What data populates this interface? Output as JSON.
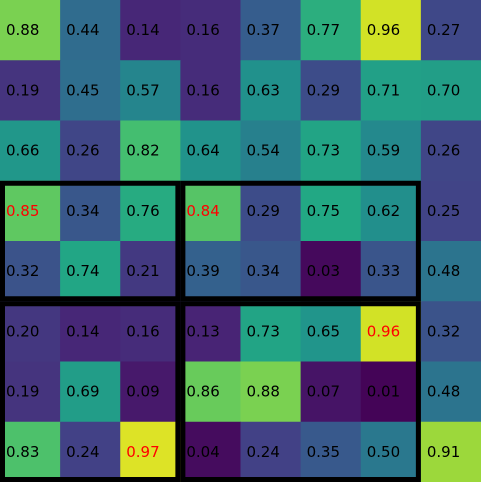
{
  "chart_data": {
    "type": "heatmap",
    "rows": 8,
    "cols": 8,
    "values": [
      [
        0.88,
        0.44,
        0.14,
        0.16,
        0.37,
        0.77,
        0.96,
        0.27
      ],
      [
        0.19,
        0.45,
        0.57,
        0.16,
        0.63,
        0.29,
        0.71,
        0.7
      ],
      [
        0.66,
        0.26,
        0.82,
        0.64,
        0.54,
        0.73,
        0.59,
        0.26
      ],
      [
        0.85,
        0.34,
        0.76,
        0.84,
        0.29,
        0.75,
        0.62,
        0.25
      ],
      [
        0.32,
        0.74,
        0.21,
        0.39,
        0.34,
        0.03,
        0.33,
        0.48
      ],
      [
        0.2,
        0.14,
        0.16,
        0.13,
        0.73,
        0.65,
        0.96,
        0.32
      ],
      [
        0.19,
        0.69,
        0.09,
        0.86,
        0.88,
        0.07,
        0.01,
        0.48
      ],
      [
        0.83,
        0.24,
        0.97,
        0.04,
        0.24,
        0.35,
        0.5,
        0.91
      ]
    ],
    "labels": [
      [
        "0.88",
        "0.44",
        "0.14",
        "0.16",
        "0.37",
        "0.77",
        "0.96",
        "0.27"
      ],
      [
        "0.19",
        "0.45",
        "0.57",
        "0.16",
        "0.63",
        "0.29",
        "0.71",
        "0.70"
      ],
      [
        "0.66",
        "0.26",
        "0.82",
        "0.64",
        "0.54",
        "0.73",
        "0.59",
        "0.26"
      ],
      [
        "0.85",
        "0.34",
        "0.76",
        "0.84",
        "0.29",
        "0.75",
        "0.62",
        "0.25"
      ],
      [
        "0.32",
        "0.74",
        "0.21",
        "0.39",
        "0.34",
        "0.03",
        "0.33",
        "0.48"
      ],
      [
        "0.20",
        "0.14",
        "0.16",
        "0.13",
        "0.73",
        "0.65",
        "0.96",
        "0.32"
      ],
      [
        "0.19",
        "0.69",
        "0.09",
        "0.86",
        "0.88",
        "0.07",
        "0.01",
        "0.48"
      ],
      [
        "0.83",
        "0.24",
        "0.97",
        "0.04",
        "0.24",
        "0.35",
        "0.50",
        "0.91"
      ]
    ],
    "colormap": "viridis",
    "value_range": [
      0,
      1
    ],
    "highlighted_cells": [
      [
        3,
        0
      ],
      [
        3,
        3
      ],
      [
        5,
        6
      ],
      [
        7,
        2
      ]
    ],
    "highlight_color": "#ff0000",
    "label_color": "#000000",
    "regions": [
      {
        "row_start": 3,
        "row_end": 4,
        "col_start": 0,
        "col_end": 2
      },
      {
        "row_start": 3,
        "row_end": 4,
        "col_start": 3,
        "col_end": 6
      },
      {
        "row_start": 5,
        "row_end": 7,
        "col_start": 0,
        "col_end": 2
      },
      {
        "row_start": 5,
        "row_end": 7,
        "col_start": 3,
        "col_end": 6
      }
    ],
    "region_border_color": "#000000"
  }
}
